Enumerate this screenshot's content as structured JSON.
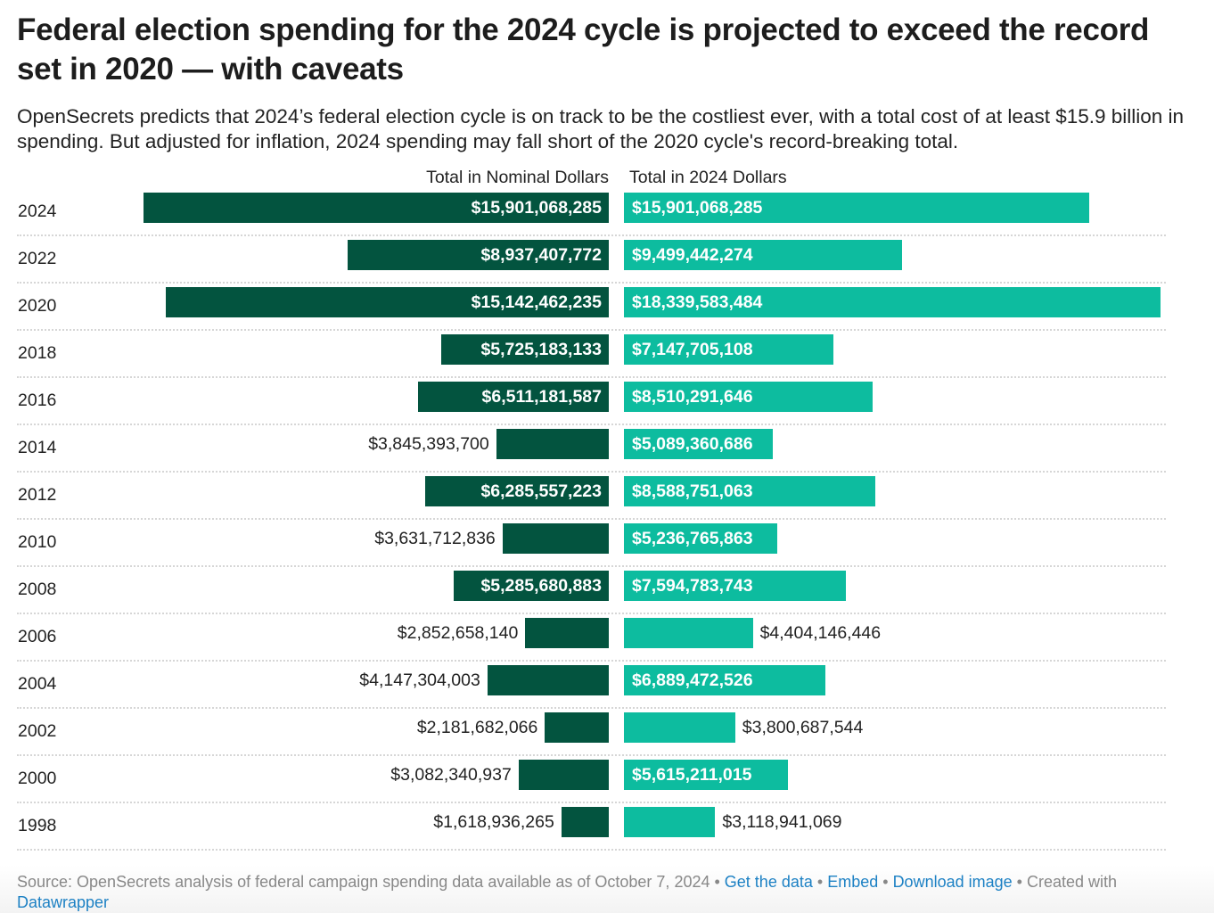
{
  "title": "Federal election spending for the 2024 cycle is projected to exceed the record set in 2020 — with caveats",
  "subtitle": "OpenSecrets predicts that 2024’s federal election cycle is on track to be the costliest ever, with a total cost of at least $15.9 billion in spending. But adjusted for inflation, 2024 spending may fall short of the 2020 cycle's record-breaking total.",
  "footer": {
    "source": "Source: OpenSecrets analysis of federal campaign spending data available as of October 7, 2024",
    "sep": " • ",
    "get_data": "Get the data",
    "embed": "Embed",
    "download": "Download image",
    "created_with": "Created with",
    "datawrapper": "Datawrapper"
  },
  "chart_data": {
    "type": "bar",
    "orientation": "horizontal",
    "categories": [
      "2024",
      "2022",
      "2020",
      "2018",
      "2016",
      "2014",
      "2012",
      "2010",
      "2008",
      "2006",
      "2004",
      "2002",
      "2000",
      "1998"
    ],
    "series": [
      {
        "name": "Total in Nominal Dollars",
        "color": "#03543f",
        "direction": "left",
        "values": [
          15901068285,
          8937407772,
          15142462235,
          5725183133,
          6511181587,
          3845393700,
          6285557223,
          3631712836,
          5285680883,
          2852658140,
          4147304003,
          2181682066,
          3082340937,
          1618936265
        ],
        "labels": [
          "$15,901,068,285",
          "$8,937,407,772",
          "$15,142,462,235",
          "$5,725,183,133",
          "$6,511,181,587",
          "$3,845,393,700",
          "$6,285,557,223",
          "$3,631,712,836",
          "$5,285,680,883",
          "$2,852,658,140",
          "$4,147,304,003",
          "$2,181,682,066",
          "$3,082,340,937",
          "$1,618,936,265"
        ]
      },
      {
        "name": "Total in 2024 Dollars",
        "color": "#0dbc9f",
        "direction": "right",
        "values": [
          15901068285,
          9499442274,
          18339583484,
          7147705108,
          8510291646,
          5089360686,
          8588751063,
          5236765863,
          7594783743,
          4404146446,
          6889472526,
          3800687544,
          5615211015,
          3118941069
        ],
        "labels": [
          "$15,901,068,285",
          "$9,499,442,274",
          "$18,339,583,484",
          "$7,147,705,108",
          "$8,510,291,646",
          "$5,089,360,686",
          "$8,588,751,063",
          "$5,236,765,863",
          "$7,594,783,743",
          "$4,404,146,446",
          "$6,889,472,526",
          "$3,800,687,544",
          "$5,615,211,015",
          "$3,118,941,069"
        ]
      }
    ],
    "grid": false,
    "legend": "column headers above bars"
  }
}
